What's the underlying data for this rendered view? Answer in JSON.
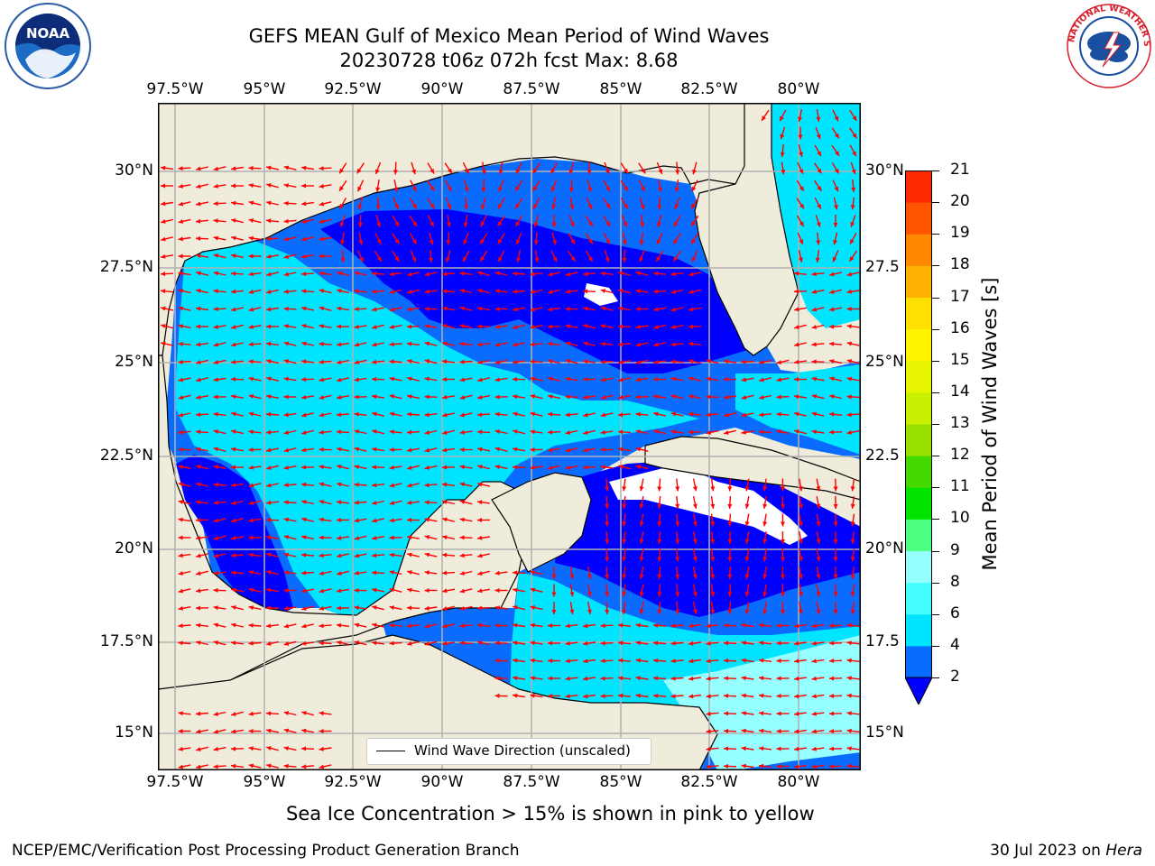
{
  "title": {
    "line1": "GEFS MEAN Gulf of Mexico Mean Period of Wind Waves",
    "line2": "20230728 t06z 072h fcst   Max: 8.68"
  },
  "logos": {
    "left": {
      "name": "noaa-logo",
      "text": "NOAA",
      "ring_text": "NATIONAL OCEANIC AND ATMOSPHERIC ADMINISTRATION · U.S. DEPARTMENT OF COMMERCE"
    },
    "right": {
      "name": "nws-logo",
      "ring_text": "NATIONAL WEATHER SERVICE"
    }
  },
  "map": {
    "lon_labels": [
      "97.5°W",
      "95°W",
      "92.5°W",
      "90°W",
      "87.5°W",
      "85°W",
      "82.5°W",
      "80°W"
    ],
    "lat_labels_left": [
      "30°N",
      "27.5°N",
      "25°N",
      "22.5°N",
      "20°N",
      "17.5°N",
      "15°N"
    ],
    "lat_labels_right": [
      "30°N",
      "27.5",
      "25°N",
      "22.5",
      "20°N",
      "17.5",
      "15°N"
    ],
    "legend_label": "Wind Wave Direction (unscaled)",
    "land_color": "#efecdc",
    "arrow_color": "#ff0000"
  },
  "colorbar": {
    "label": "Mean Period of Wind Waves [s]",
    "ticks": [
      "2",
      "4",
      "6",
      "8",
      "9",
      "10",
      "11",
      "12",
      "13",
      "14",
      "15",
      "16",
      "17",
      "18",
      "19",
      "20",
      "21"
    ],
    "colors": [
      "#0a6cff",
      "#00e5ff",
      "#45ffff",
      "#96ffff",
      "#4dff80",
      "#00e400",
      "#44d900",
      "#99e000",
      "#c8f000",
      "#e8f500",
      "#fff500",
      "#ffe000",
      "#ffb300",
      "#ff8800",
      "#ff5500",
      "#ff2a00"
    ],
    "under_color": "#0000ff"
  },
  "caption": "Sea Ice Concentration > 15% is shown in pink to yellow",
  "footer": {
    "left": "NCEP/EMC/Verification Post Processing Product Generation Branch",
    "right_date": "30 Jul 2023 on ",
    "right_host": "Hera"
  }
}
